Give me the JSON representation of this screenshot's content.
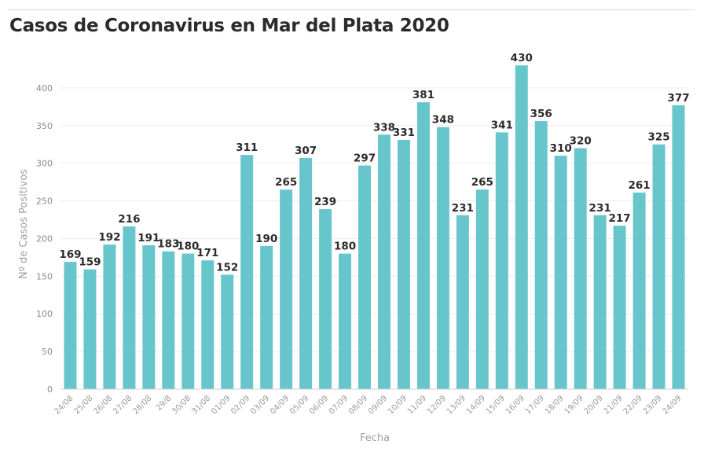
{
  "chart_data": {
    "type": "bar",
    "title": "Casos de Coronavirus en Mar del Plata 2020",
    "xlabel": "Fecha",
    "ylabel": "Nº de Casos Positivos",
    "ylim": [
      0,
      450
    ],
    "yticks": [
      0,
      50,
      100,
      150,
      200,
      250,
      300,
      350,
      400
    ],
    "grid": true,
    "color": "#67c5cc",
    "categories": [
      "24/08",
      "25/08",
      "26/08",
      "27/08",
      "28/08",
      "29/8",
      "30/08",
      "31/08",
      "01/09",
      "02/09",
      "03/09",
      "04/09",
      "05/09",
      "06/09",
      "07/09",
      "08/09",
      "09/09",
      "10/09",
      "11/09",
      "12/09",
      "13/09",
      "14/09",
      "15/09",
      "16/09",
      "17/09",
      "18/09",
      "19/09",
      "20/09",
      "21/09",
      "22/09",
      "23/09",
      "24/09"
    ],
    "values": [
      169,
      159,
      192,
      216,
      191,
      183,
      180,
      171,
      152,
      311,
      190,
      265,
      307,
      239,
      180,
      297,
      338,
      331,
      381,
      348,
      231,
      265,
      341,
      430,
      356,
      310,
      320,
      231,
      217,
      261,
      325,
      377
    ]
  }
}
